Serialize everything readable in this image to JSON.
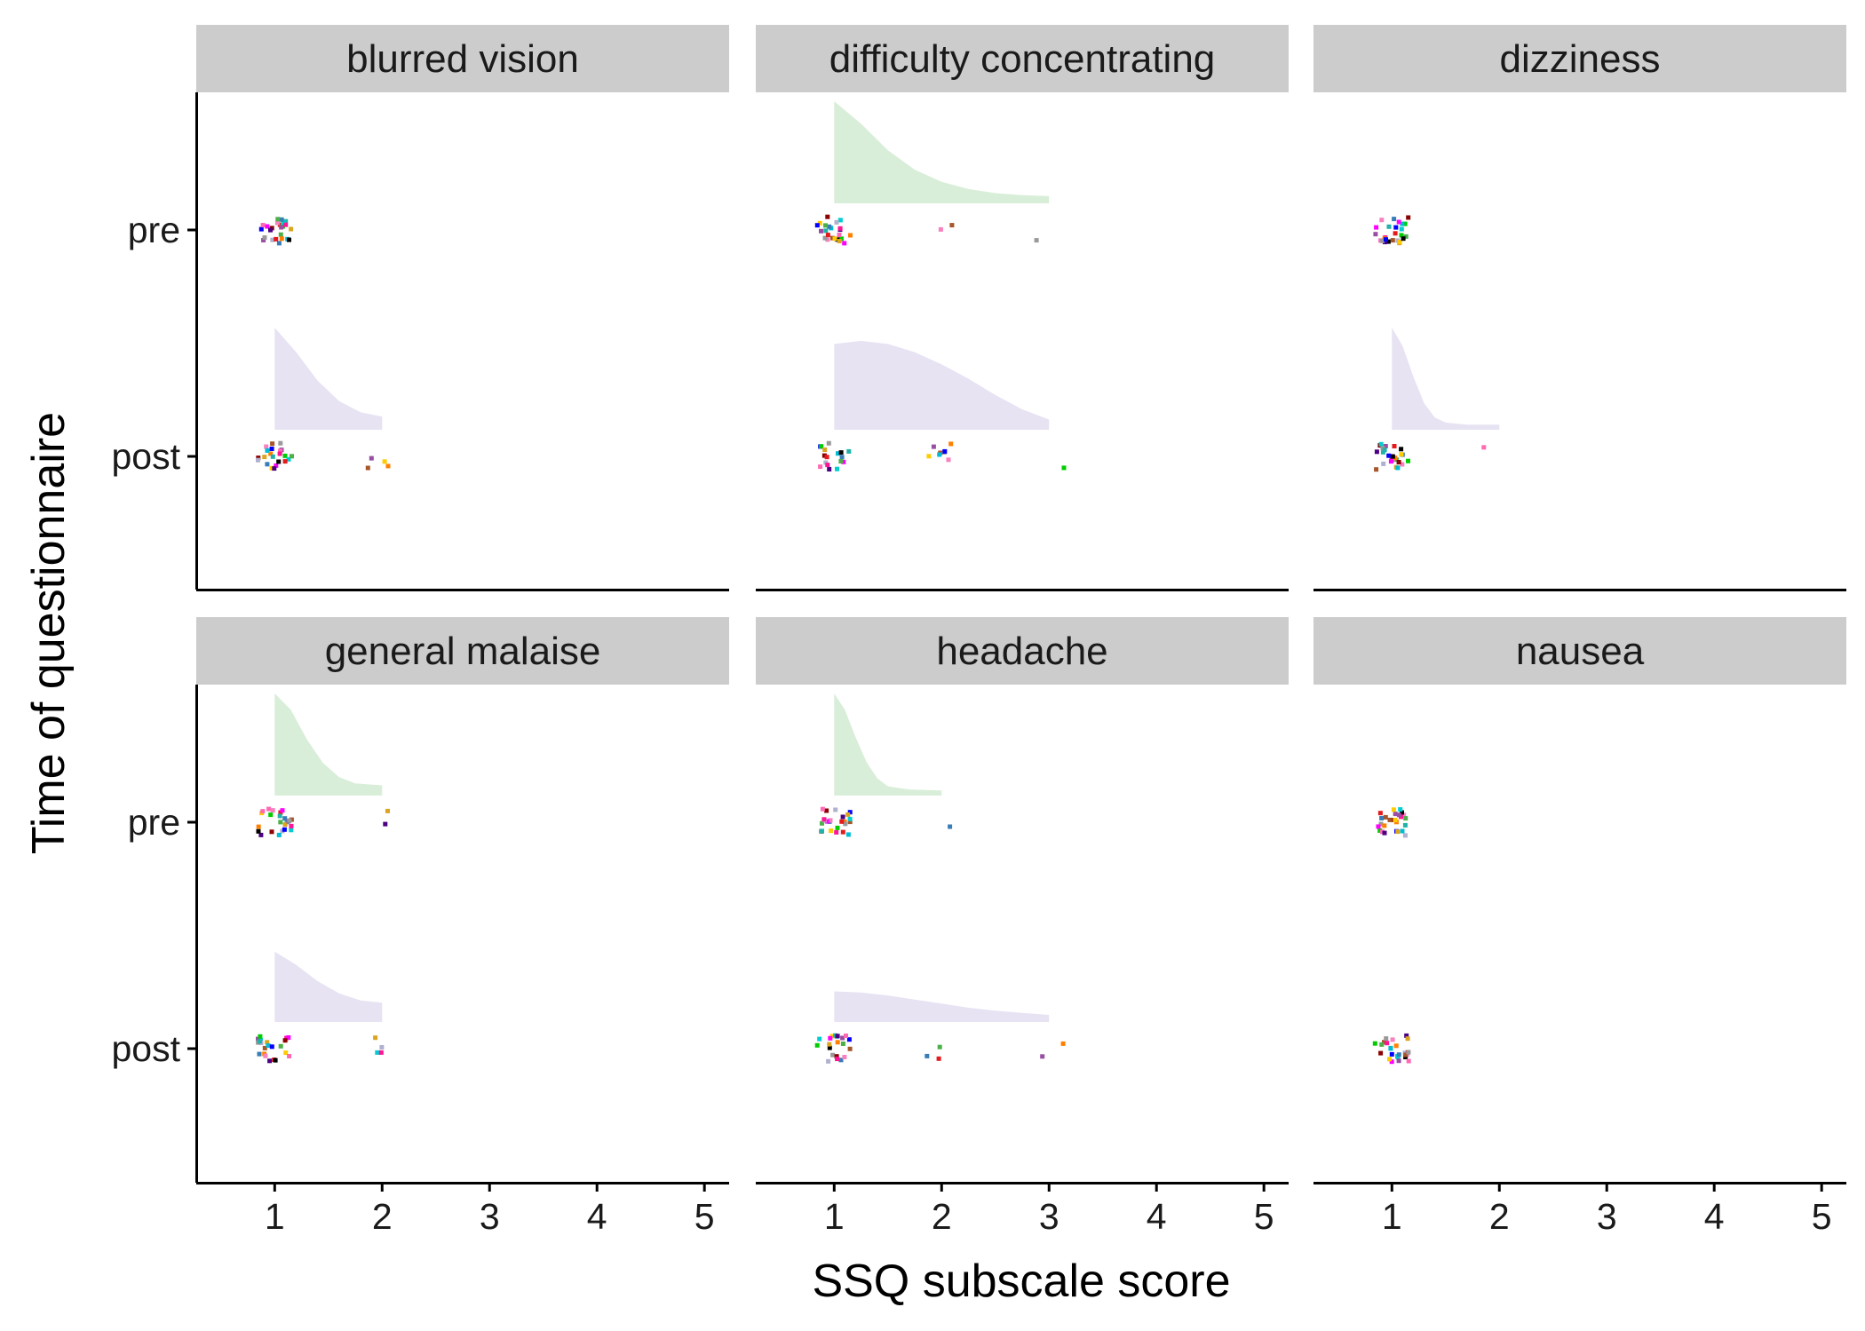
{
  "chart_data": {
    "type": "faceted raincloud (half-density + jittered points)",
    "xlabel": "SSQ subscale score",
    "ylabel": "Time of questionnaire",
    "xlim": [
      0.27,
      5.23
    ],
    "x_ticks": [
      "1",
      "2",
      "3",
      "4",
      "5"
    ],
    "y_categories": [
      "pre",
      "post"
    ],
    "colors": {
      "strip_bg": "#cccccc",
      "density_pre": "#d9eed9",
      "density_post": "#e7e3f3",
      "axis": "#000000"
    },
    "point_palette": [
      "#e41a1c",
      "#377eb8",
      "#4daf4a",
      "#984ea3",
      "#ff7f00",
      "#ffcc00",
      "#a65628",
      "#f781bf",
      "#999999",
      "#00bcd4",
      "#0000ff",
      "#00cc00",
      "#ff00ff",
      "#000000",
      "#8b0000",
      "#20b2aa",
      "#ff69b4",
      "#4b0082",
      "#daa520",
      "#00ced1",
      "#b0b0d0",
      "#ff1493"
    ],
    "facets": [
      {
        "name": "blurred vision",
        "pre": {
          "density": null,
          "points": [
            {
              "value": 1,
              "count": 26
            }
          ]
        },
        "post": {
          "density": {
            "from": 1,
            "to": 2,
            "shape": [
              [
                1,
                1
              ],
              [
                1.2,
                0.76
              ],
              [
                1.4,
                0.48
              ],
              [
                1.6,
                0.28
              ],
              [
                1.8,
                0.17
              ],
              [
                2,
                0.13
              ]
            ]
          },
          "points": [
            {
              "value": 1,
              "count": 22
            },
            {
              "value": 2,
              "count": 4
            }
          ]
        }
      },
      {
        "name": "difficulty concentrating",
        "pre": {
          "density": {
            "from": 1,
            "to": 3,
            "shape": [
              [
                1,
                1
              ],
              [
                1.25,
                0.78
              ],
              [
                1.5,
                0.52
              ],
              [
                1.75,
                0.33
              ],
              [
                2,
                0.21
              ],
              [
                2.25,
                0.14
              ],
              [
                2.5,
                0.1
              ],
              [
                2.75,
                0.08
              ],
              [
                3,
                0.07
              ]
            ]
          },
          "points": [
            {
              "value": 1,
              "count": 23
            },
            {
              "value": 2,
              "count": 2
            },
            {
              "value": 3,
              "count": 1
            }
          ]
        },
        "post": {
          "density": {
            "from": 1,
            "to": 3,
            "shape": [
              [
                1,
                0.84
              ],
              [
                1.25,
                0.87
              ],
              [
                1.5,
                0.84
              ],
              [
                1.75,
                0.76
              ],
              [
                2,
                0.64
              ],
              [
                2.25,
                0.5
              ],
              [
                2.5,
                0.34
              ],
              [
                2.75,
                0.2
              ],
              [
                3,
                0.1
              ]
            ]
          },
          "points": [
            {
              "value": 1,
              "count": 17
            },
            {
              "value": 2,
              "count": 8
            },
            {
              "value": 3,
              "count": 1
            }
          ]
        }
      },
      {
        "name": "dizziness",
        "pre": {
          "density": null,
          "points": [
            {
              "value": 1,
              "count": 26
            }
          ]
        },
        "post": {
          "density": {
            "from": 1,
            "to": 2,
            "shape": [
              [
                1,
                1
              ],
              [
                1.1,
                0.82
              ],
              [
                1.2,
                0.52
              ],
              [
                1.3,
                0.26
              ],
              [
                1.4,
                0.12
              ],
              [
                1.5,
                0.07
              ],
              [
                1.7,
                0.05
              ],
              [
                2,
                0.05
              ]
            ]
          },
          "points": [
            {
              "value": 1,
              "count": 25
            },
            {
              "value": 2,
              "count": 1
            }
          ]
        }
      },
      {
        "name": "general malaise",
        "pre": {
          "density": {
            "from": 1,
            "to": 2,
            "shape": [
              [
                1,
                1
              ],
              [
                1.15,
                0.84
              ],
              [
                1.3,
                0.55
              ],
              [
                1.45,
                0.32
              ],
              [
                1.6,
                0.18
              ],
              [
                1.75,
                0.12
              ],
              [
                2,
                0.1
              ]
            ]
          },
          "points": [
            {
              "value": 1,
              "count": 24
            },
            {
              "value": 2,
              "count": 2
            }
          ]
        },
        "post": {
          "density": {
            "from": 1,
            "to": 2,
            "shape": [
              [
                1,
                0.69
              ],
              [
                1.2,
                0.56
              ],
              [
                1.4,
                0.4
              ],
              [
                1.6,
                0.28
              ],
              [
                1.8,
                0.21
              ],
              [
                2,
                0.19
              ]
            ]
          },
          "points": [
            {
              "value": 1,
              "count": 22
            },
            {
              "value": 2,
              "count": 4
            }
          ]
        }
      },
      {
        "name": "headache",
        "pre": {
          "density": {
            "from": 1,
            "to": 2,
            "shape": [
              [
                1,
                1
              ],
              [
                1.1,
                0.84
              ],
              [
                1.2,
                0.57
              ],
              [
                1.3,
                0.33
              ],
              [
                1.4,
                0.17
              ],
              [
                1.5,
                0.09
              ],
              [
                1.7,
                0.06
              ],
              [
                2,
                0.05
              ]
            ]
          },
          "points": [
            {
              "value": 1,
              "count": 25
            },
            {
              "value": 2,
              "count": 1
            }
          ]
        },
        "post": {
          "density": {
            "from": 1,
            "to": 3,
            "shape": [
              [
                1,
                0.3
              ],
              [
                1.25,
                0.29
              ],
              [
                1.5,
                0.26
              ],
              [
                1.75,
                0.22
              ],
              [
                2,
                0.18
              ],
              [
                2.25,
                0.14
              ],
              [
                2.5,
                0.11
              ],
              [
                2.75,
                0.09
              ],
              [
                3,
                0.07
              ]
            ]
          },
          "points": [
            {
              "value": 1,
              "count": 21
            },
            {
              "value": 2,
              "count": 3
            },
            {
              "value": 3,
              "count": 2
            }
          ]
        }
      },
      {
        "name": "nausea",
        "pre": {
          "density": null,
          "points": [
            {
              "value": 1,
              "count": 26
            }
          ]
        },
        "post": {
          "density": null,
          "points": [
            {
              "value": 1,
              "count": 26
            }
          ]
        }
      }
    ]
  }
}
